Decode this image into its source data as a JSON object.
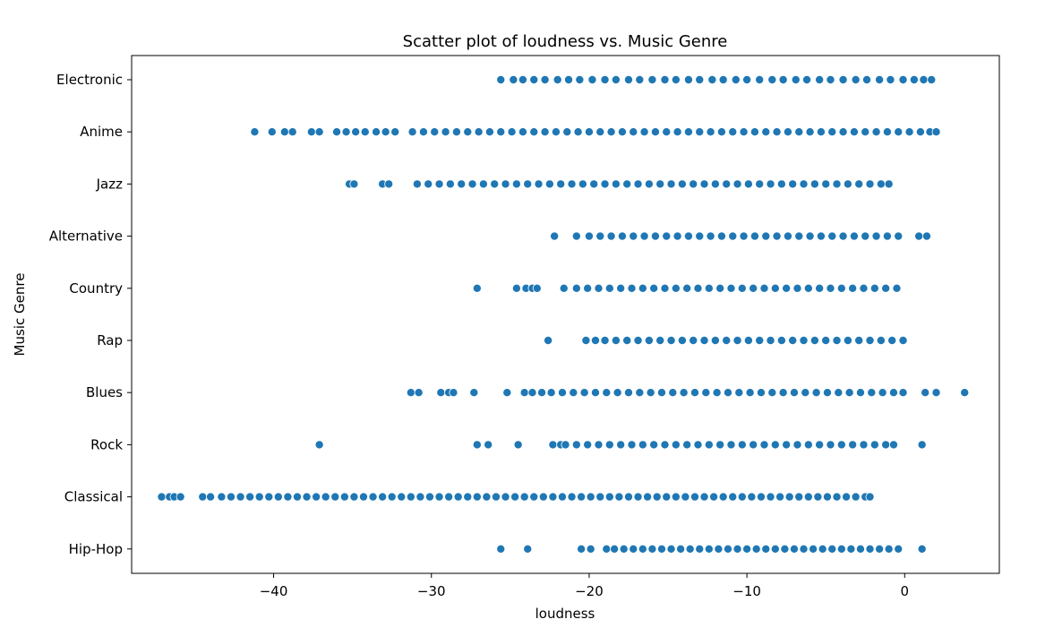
{
  "chart_data": {
    "type": "scatter",
    "title": "Scatter plot of loudness vs. Music Genre",
    "xlabel": "loudness",
    "ylabel": "Music Genre",
    "xlim": [
      -49,
      6
    ],
    "x_ticks": [
      -40,
      -30,
      -20,
      -10,
      0
    ],
    "x_tick_labels": [
      "−40",
      "−30",
      "−20",
      "−10",
      "0"
    ],
    "categories": [
      "Electronic",
      "Anime",
      "Jazz",
      "Alternative",
      "Country",
      "Rap",
      "Blues",
      "Rock",
      "Classical",
      "Hip-Hop"
    ],
    "grid": false,
    "legend": "none",
    "marker_color": "#1f77b4",
    "series": [
      {
        "category": "Electronic",
        "x": [
          -25.6,
          -24.8,
          -24.2,
          -23.5,
          -22.8,
          -22.0,
          -21.3,
          -20.6,
          -19.8,
          -19.0,
          -18.3,
          -17.5,
          -16.8,
          -16.0,
          -15.2,
          -14.5,
          -13.7,
          -13.0,
          -12.2,
          -11.5,
          -10.7,
          -10.0,
          -9.2,
          -8.4,
          -7.7,
          -6.9,
          -6.2,
          -5.4,
          -4.7,
          -3.9,
          -3.1,
          -2.4,
          -1.6,
          -0.9,
          -0.1,
          0.6,
          1.2,
          1.7
        ]
      },
      {
        "category": "Anime",
        "x": [
          -41.2,
          -40.1,
          -39.3,
          -38.8,
          -37.6,
          -37.1,
          -36.0,
          -35.4,
          -34.8,
          -34.2,
          -33.5,
          -32.9,
          -32.3,
          -31.2,
          -30.5,
          -29.8,
          -29.1,
          -28.4,
          -27.7,
          -27.0,
          -26.3,
          -25.6,
          -24.9,
          -24.2,
          -23.5,
          -22.8,
          -22.1,
          -21.4,
          -20.7,
          -20.0,
          -19.3,
          -18.6,
          -17.9,
          -17.2,
          -16.5,
          -15.8,
          -15.1,
          -14.4,
          -13.7,
          -13.0,
          -12.3,
          -11.6,
          -10.9,
          -10.2,
          -9.5,
          -8.8,
          -8.1,
          -7.4,
          -6.7,
          -6.0,
          -5.3,
          -4.6,
          -3.9,
          -3.2,
          -2.5,
          -1.8,
          -1.1,
          -0.4,
          0.3,
          1.0,
          1.6,
          2.0
        ]
      },
      {
        "category": "Jazz",
        "x": [
          -35.2,
          -34.9,
          -33.1,
          -32.7,
          -30.9,
          -30.2,
          -29.5,
          -28.8,
          -28.1,
          -27.4,
          -26.7,
          -26.0,
          -25.3,
          -24.6,
          -23.9,
          -23.2,
          -22.5,
          -21.8,
          -21.1,
          -20.4,
          -19.7,
          -19.0,
          -18.3,
          -17.6,
          -16.9,
          -16.2,
          -15.5,
          -14.8,
          -14.1,
          -13.4,
          -12.7,
          -12.0,
          -11.3,
          -10.6,
          -9.9,
          -9.2,
          -8.5,
          -7.8,
          -7.1,
          -6.4,
          -5.7,
          -5.0,
          -4.3,
          -3.6,
          -2.9,
          -2.2,
          -1.5,
          -1.0
        ]
      },
      {
        "category": "Alternative",
        "x": [
          -22.2,
          -20.8,
          -20.0,
          -19.3,
          -18.6,
          -17.9,
          -17.2,
          -16.5,
          -15.8,
          -15.1,
          -14.4,
          -13.7,
          -13.0,
          -12.3,
          -11.6,
          -10.9,
          -10.2,
          -9.5,
          -8.8,
          -8.1,
          -7.4,
          -6.7,
          -6.0,
          -5.3,
          -4.6,
          -3.9,
          -3.2,
          -2.5,
          -1.8,
          -1.1,
          -0.4,
          0.9,
          1.4
        ]
      },
      {
        "category": "Country",
        "x": [
          -27.1,
          -24.6,
          -24.0,
          -23.6,
          -23.3,
          -21.6,
          -20.8,
          -20.1,
          -19.4,
          -18.7,
          -18.0,
          -17.3,
          -16.6,
          -15.9,
          -15.2,
          -14.5,
          -13.8,
          -13.1,
          -12.4,
          -11.7,
          -11.0,
          -10.3,
          -9.6,
          -8.9,
          -8.2,
          -7.5,
          -6.8,
          -6.1,
          -5.4,
          -4.7,
          -4.0,
          -3.3,
          -2.6,
          -1.9,
          -1.2,
          -0.5
        ]
      },
      {
        "category": "Rap",
        "x": [
          -22.6,
          -20.2,
          -19.6,
          -19.0,
          -18.3,
          -17.6,
          -16.9,
          -16.2,
          -15.5,
          -14.8,
          -14.1,
          -13.4,
          -12.7,
          -12.0,
          -11.3,
          -10.6,
          -9.9,
          -9.2,
          -8.5,
          -7.8,
          -7.1,
          -6.4,
          -5.7,
          -5.0,
          -4.3,
          -3.6,
          -2.9,
          -2.2,
          -1.5,
          -0.8,
          -0.1
        ]
      },
      {
        "category": "Blues",
        "x": [
          -31.3,
          -30.8,
          -29.4,
          -28.9,
          -28.6,
          -27.3,
          -25.2,
          -24.1,
          -23.6,
          -23.0,
          -22.4,
          -21.7,
          -21.0,
          -20.3,
          -19.6,
          -18.9,
          -18.2,
          -17.5,
          -16.8,
          -16.1,
          -15.4,
          -14.7,
          -14.0,
          -13.3,
          -12.6,
          -11.9,
          -11.2,
          -10.5,
          -9.8,
          -9.1,
          -8.4,
          -7.7,
          -7.0,
          -6.3,
          -5.6,
          -4.9,
          -4.2,
          -3.5,
          -2.8,
          -2.1,
          -1.4,
          -0.7,
          -0.1,
          1.3,
          2.0,
          3.8
        ]
      },
      {
        "category": "Rock",
        "x": [
          -37.1,
          -27.1,
          -26.4,
          -24.5,
          -22.3,
          -21.8,
          -21.5,
          -20.8,
          -20.1,
          -19.4,
          -18.7,
          -18.0,
          -17.3,
          -16.6,
          -15.9,
          -15.2,
          -14.5,
          -13.8,
          -13.1,
          -12.4,
          -11.7,
          -11.0,
          -10.3,
          -9.6,
          -8.9,
          -8.2,
          -7.5,
          -6.8,
          -6.1,
          -5.4,
          -4.7,
          -4.0,
          -3.3,
          -2.6,
          -1.9,
          -1.2,
          -0.7,
          1.1
        ]
      },
      {
        "category": "Classical",
        "x": [
          -47.1,
          -46.6,
          -46.3,
          -45.9,
          -44.5,
          -44.0,
          -43.3,
          -42.7,
          -42.1,
          -41.5,
          -40.9,
          -40.3,
          -39.7,
          -39.1,
          -38.5,
          -37.9,
          -37.3,
          -36.7,
          -36.1,
          -35.5,
          -34.9,
          -34.3,
          -33.7,
          -33.1,
          -32.5,
          -31.9,
          -31.3,
          -30.7,
          -30.1,
          -29.5,
          -28.9,
          -28.3,
          -27.7,
          -27.1,
          -26.5,
          -25.9,
          -25.3,
          -24.7,
          -24.1,
          -23.5,
          -22.9,
          -22.3,
          -21.7,
          -21.1,
          -20.5,
          -19.9,
          -19.3,
          -18.7,
          -18.1,
          -17.5,
          -16.9,
          -16.3,
          -15.7,
          -15.1,
          -14.5,
          -13.9,
          -13.3,
          -12.7,
          -12.1,
          -11.5,
          -10.9,
          -10.3,
          -9.7,
          -9.1,
          -8.5,
          -7.9,
          -7.3,
          -6.7,
          -6.1,
          -5.5,
          -4.9,
          -4.3,
          -3.7,
          -3.1,
          -2.5,
          -2.2
        ]
      },
      {
        "category": "Hip-Hop",
        "x": [
          -25.6,
          -23.9,
          -20.5,
          -19.9,
          -18.9,
          -18.4,
          -17.8,
          -17.2,
          -16.6,
          -16.0,
          -15.4,
          -14.8,
          -14.2,
          -13.6,
          -13.0,
          -12.4,
          -11.8,
          -11.2,
          -10.6,
          -10.0,
          -9.4,
          -8.8,
          -8.2,
          -7.6,
          -7.0,
          -6.4,
          -5.8,
          -5.2,
          -4.6,
          -4.0,
          -3.4,
          -2.8,
          -2.2,
          -1.6,
          -1.0,
          -0.4,
          1.1
        ]
      }
    ]
  }
}
